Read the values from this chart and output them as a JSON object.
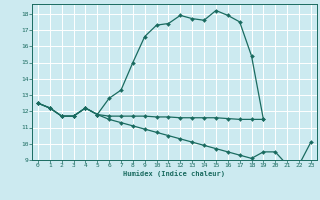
{
  "xlabel": "Humidex (Indice chaleur)",
  "ylabel": "",
  "bg_color": "#cceaf0",
  "grid_color": "#ffffff",
  "line_color": "#1a6b60",
  "marker_color": "#1a6b60",
  "x": [
    0,
    1,
    2,
    3,
    4,
    5,
    6,
    7,
    8,
    9,
    10,
    11,
    12,
    13,
    14,
    15,
    16,
    17,
    18,
    19,
    20,
    21,
    22,
    23
  ],
  "line1": [
    12.5,
    12.2,
    11.7,
    11.7,
    12.2,
    11.8,
    12.8,
    13.3,
    15.0,
    16.6,
    17.3,
    17.4,
    17.9,
    17.7,
    17.6,
    18.2,
    17.9,
    17.5,
    15.4,
    11.5,
    null,
    null,
    null,
    null
  ],
  "line2": [
    12.5,
    12.2,
    11.7,
    11.7,
    12.2,
    11.8,
    11.7,
    11.7,
    11.7,
    11.7,
    11.65,
    11.65,
    11.6,
    11.6,
    11.6,
    11.6,
    11.55,
    11.5,
    11.5,
    11.5,
    null,
    null,
    null,
    null
  ],
  "line3": [
    12.5,
    12.2,
    11.7,
    11.7,
    12.2,
    11.8,
    11.5,
    11.3,
    11.1,
    10.9,
    10.7,
    10.5,
    10.3,
    10.1,
    9.9,
    9.7,
    9.5,
    9.3,
    9.1,
    9.5,
    9.5,
    8.7,
    8.7,
    10.1
  ],
  "xlim": [
    -0.5,
    23.5
  ],
  "ylim": [
    9,
    18.6
  ],
  "yticks": [
    9,
    10,
    11,
    12,
    13,
    14,
    15,
    16,
    17,
    18
  ],
  "xticks": [
    0,
    1,
    2,
    3,
    4,
    5,
    6,
    7,
    8,
    9,
    10,
    11,
    12,
    13,
    14,
    15,
    16,
    17,
    18,
    19,
    20,
    21,
    22,
    23
  ]
}
